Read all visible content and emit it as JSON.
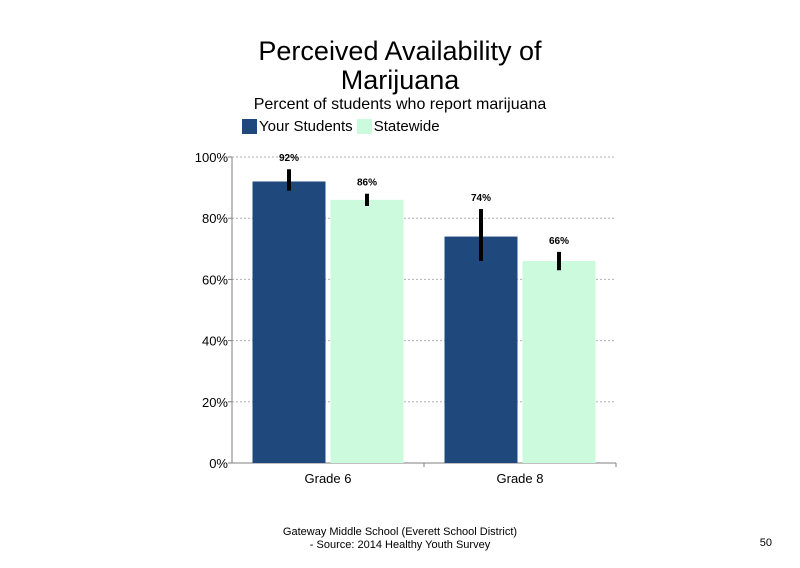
{
  "title_line1": "Perceived Availability of",
  "title_line2": "Marijuana",
  "subtitle": "Percent of students  who report marijuana",
  "footer_line1": "Gateway Middle  School  (Everett School District)",
  "footer_line2": "- Source: 2014 Healthy  Youth Survey",
  "page_number": "50",
  "colors": {
    "your_students": "#1f497d",
    "statewide": "#ccfadc",
    "error_bar": "#000000",
    "grid": "#b0b0b0"
  },
  "chart_data": {
    "type": "bar",
    "categories": [
      "Grade 6",
      "Grade 8"
    ],
    "series": [
      {
        "name": "Your Students",
        "values": [
          92,
          74
        ],
        "labels": [
          "92%",
          "74%"
        ],
        "error_low": [
          89,
          66
        ],
        "error_high": [
          96,
          83
        ]
      },
      {
        "name": "Statewide",
        "values": [
          86,
          66
        ],
        "labels": [
          "86%",
          "66%"
        ],
        "error_low": [
          84,
          63
        ],
        "error_high": [
          88,
          69
        ]
      }
    ],
    "yticks": [
      "0%",
      "20%",
      "40%",
      "60%",
      "80%",
      "100%"
    ],
    "ylim": [
      0,
      100
    ],
    "grid": true,
    "legend_position": "top-left"
  }
}
